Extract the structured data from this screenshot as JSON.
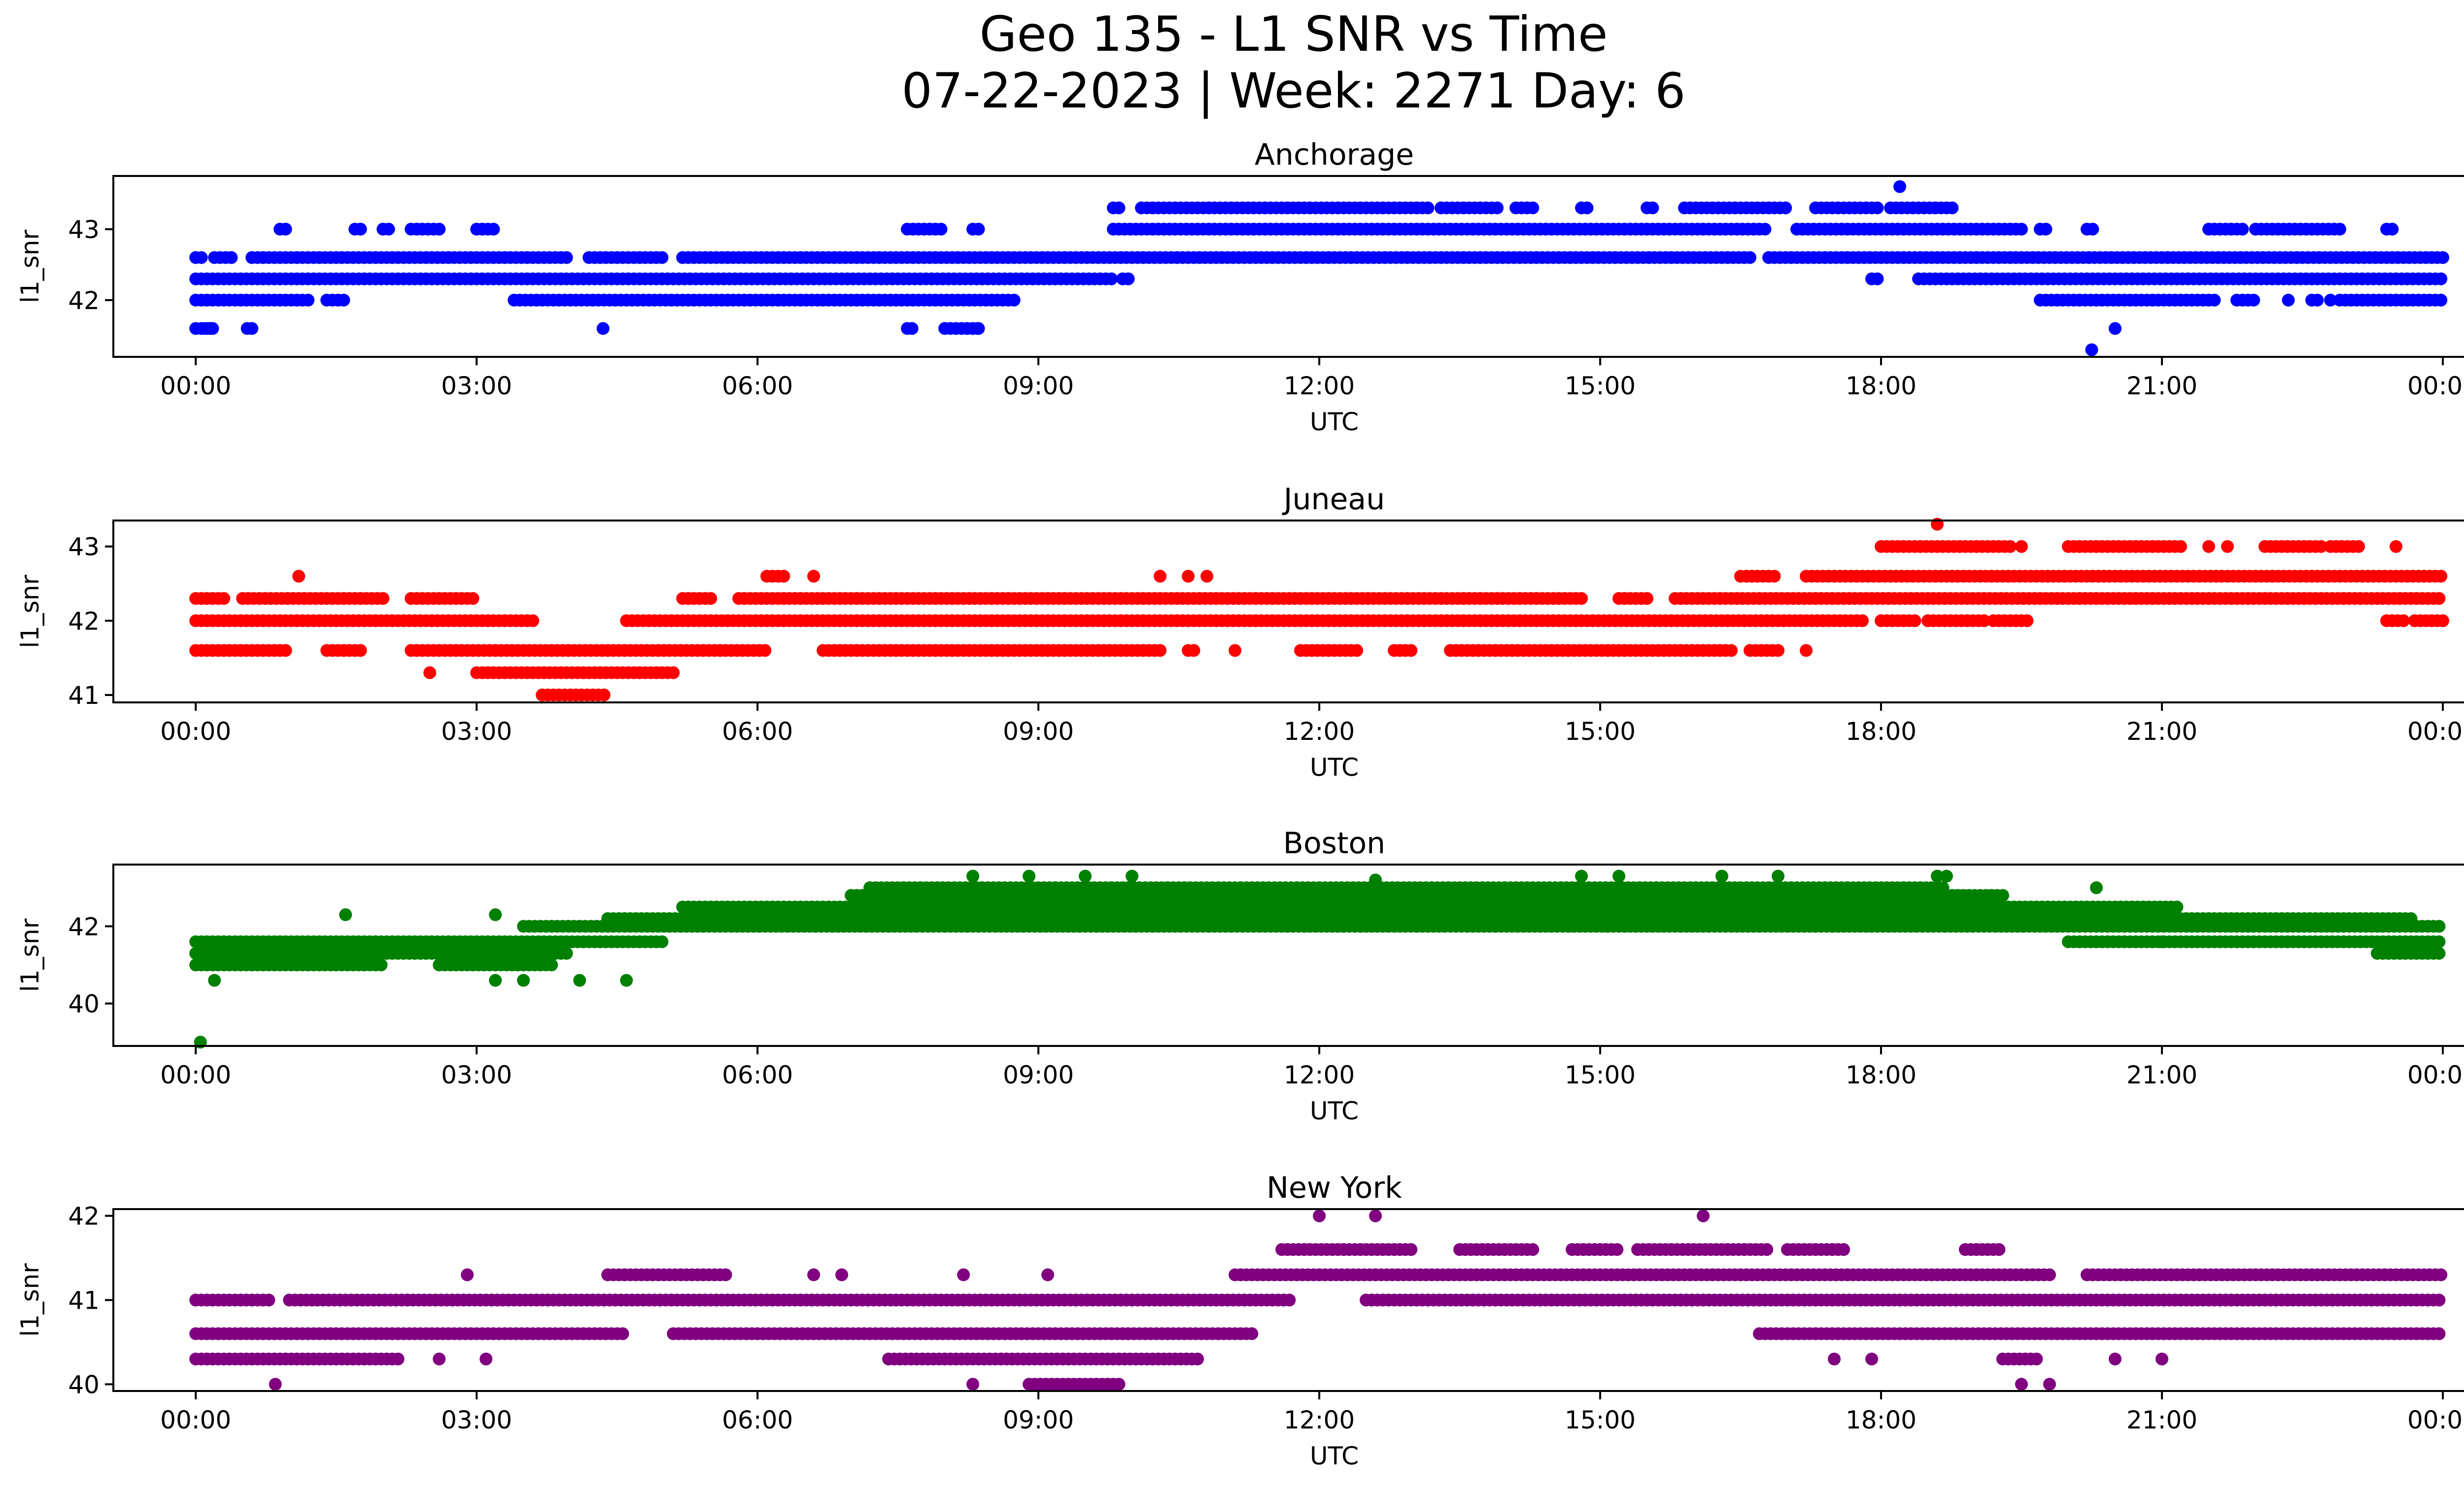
{
  "title_line1": "Geo 135 - L1 SNR vs Time",
  "title_line2": "07-22-2023 | Week: 2271 Day: 6",
  "chart_data": [
    {
      "type": "scatter",
      "title": "Anchorage",
      "xlabel": "UTC",
      "ylabel": "l1_snr",
      "color": "#0000ff",
      "xlim": [
        -0.88,
        25.2
      ],
      "ylim": [
        41.2,
        43.75
      ],
      "x_ticks": [
        "00:00",
        "03:00",
        "06:00",
        "09:00",
        "12:00",
        "15:00",
        "18:00",
        "21:00",
        "00:00"
      ],
      "y_ticks": [
        42,
        43
      ],
      "levels": [
        {
          "y": 41.6,
          "runs": [
            [
              0.0,
              0.2
            ],
            [
              0.55,
              0.6
            ],
            [
              7.6,
              7.65
            ],
            [
              8.0,
              8.4
            ]
          ]
        },
        {
          "y": 42.0,
          "runs": [
            [
              0.0,
              1.2
            ],
            [
              1.4,
              1.6
            ],
            [
              3.4,
              8.75
            ],
            [
              19.7,
              21.6
            ],
            [
              21.8,
              22.0
            ],
            [
              22.6,
              22.7
            ],
            [
              22.9,
              24.0
            ]
          ]
        },
        {
          "y": 42.3,
          "runs": [
            [
              0.0,
              9.8
            ],
            [
              9.9,
              10.0
            ],
            [
              17.9,
              18.0
            ],
            [
              18.4,
              24.0
            ]
          ]
        },
        {
          "y": 42.6,
          "runs": [
            [
              0.0,
              0.1
            ],
            [
              0.2,
              0.4
            ],
            [
              0.6,
              4.0
            ],
            [
              4.2,
              5.0
            ],
            [
              5.2,
              16.6
            ],
            [
              16.8,
              24.0
            ]
          ]
        },
        {
          "y": 43.0,
          "runs": [
            [
              0.9,
              1.0
            ],
            [
              1.7,
              1.8
            ],
            [
              2.0,
              2.1
            ],
            [
              2.3,
              2.6
            ],
            [
              3.0,
              3.2
            ],
            [
              7.6,
              8.0
            ],
            [
              8.3,
              8.4
            ],
            [
              9.8,
              16.8
            ],
            [
              17.1,
              19.5
            ],
            [
              19.7,
              19.8
            ],
            [
              20.2,
              20.3
            ],
            [
              21.5,
              21.9
            ],
            [
              22.0,
              22.9
            ],
            [
              23.4,
              23.5
            ]
          ]
        },
        {
          "y": 43.3,
          "runs": [
            [
              9.8,
              9.9
            ],
            [
              10.1,
              13.2
            ],
            [
              13.3,
              13.9
            ],
            [
              14.1,
              14.3
            ],
            [
              14.8,
              14.9
            ],
            [
              15.5,
              15.6
            ],
            [
              15.9,
              17.0
            ],
            [
              17.3,
              18.0
            ],
            [
              18.1,
              18.8
            ]
          ]
        }
      ],
      "points": [
        [
          0.1,
          41.6
        ],
        [
          0.15,
          41.6
        ],
        [
          0.6,
          41.6
        ],
        [
          4.35,
          41.6
        ],
        [
          7.65,
          41.6
        ],
        [
          8.3,
          41.6
        ],
        [
          8.35,
          41.6
        ],
        [
          18.2,
          43.6
        ],
        [
          20.25,
          41.3
        ],
        [
          20.5,
          41.6
        ],
        [
          22.35,
          42.0
        ],
        [
          22.8,
          42.0
        ]
      ]
    },
    {
      "type": "scatter",
      "title": "Juneau",
      "xlabel": "UTC",
      "ylabel": "l1_snr",
      "color": "#ff0000",
      "xlim": [
        -0.88,
        25.2
      ],
      "ylim": [
        40.9,
        43.35
      ],
      "x_ticks": [
        "00:00",
        "03:00",
        "06:00",
        "09:00",
        "12:00",
        "15:00",
        "18:00",
        "21:00",
        "00:00"
      ],
      "y_ticks": [
        41,
        42,
        43
      ],
      "levels": [
        {
          "y": 41.0,
          "runs": [
            [
              3.7,
              4.4
            ]
          ]
        },
        {
          "y": 41.3,
          "runs": [
            [
              3.0,
              5.1
            ]
          ]
        },
        {
          "y": 41.6,
          "runs": [
            [
              0.0,
              1.0
            ],
            [
              1.4,
              1.8
            ],
            [
              2.3,
              6.1
            ],
            [
              6.7,
              10.3
            ],
            [
              10.6,
              10.7
            ],
            [
              11.8,
              12.4
            ],
            [
              12.8,
              13.0
            ],
            [
              13.4,
              16.4
            ],
            [
              16.6,
              16.9
            ]
          ]
        },
        {
          "y": 42.0,
          "runs": [
            [
              0.0,
              3.6
            ],
            [
              4.6,
              17.8
            ],
            [
              18.0,
              18.4
            ],
            [
              18.5,
              19.1
            ],
            [
              19.2,
              19.6
            ],
            [
              23.4,
              23.6
            ],
            [
              23.7,
              24.0
            ]
          ]
        },
        {
          "y": 42.3,
          "runs": [
            [
              0.0,
              0.3
            ],
            [
              0.5,
              2.0
            ],
            [
              2.3,
              3.0
            ],
            [
              5.2,
              5.5
            ],
            [
              5.8,
              14.8
            ],
            [
              15.2,
              15.5
            ],
            [
              15.8,
              24.0
            ]
          ]
        },
        {
          "y": 42.6,
          "runs": [
            [
              6.1,
              6.3
            ],
            [
              16.5,
              16.9
            ],
            [
              17.2,
              24.0
            ]
          ]
        },
        {
          "y": 43.0,
          "runs": [
            [
              18.0,
              19.4
            ],
            [
              20.0,
              21.2
            ],
            [
              22.1,
              22.7
            ],
            [
              22.8,
              23.1
            ]
          ]
        }
      ],
      "points": [
        [
          1.1,
          42.6
        ],
        [
          2.5,
          41.3
        ],
        [
          3.2,
          41.6
        ],
        [
          6.6,
          42.6
        ],
        [
          10.3,
          42.6
        ],
        [
          10.6,
          42.6
        ],
        [
          10.8,
          42.6
        ],
        [
          11.1,
          41.6
        ],
        [
          13.7,
          41.6
        ],
        [
          17.2,
          41.6
        ],
        [
          18.6,
          43.3
        ],
        [
          19.5,
          43.0
        ],
        [
          21.5,
          43.0
        ],
        [
          21.7,
          43.0
        ],
        [
          23.5,
          43.0
        ]
      ]
    },
    {
      "type": "scatter",
      "title": "Boston",
      "xlabel": "UTC",
      "ylabel": "l1_snr",
      "color": "#008000",
      "xlim": [
        -0.88,
        25.2
      ],
      "ylim": [
        38.9,
        43.6
      ],
      "x_ticks": [
        "00:00",
        "03:00",
        "06:00",
        "09:00",
        "12:00",
        "15:00",
        "18:00",
        "21:00",
        "00:00"
      ],
      "y_ticks": [
        40,
        42
      ],
      "levels": [
        {
          "y": 41.0,
          "runs": [
            [
              0.0,
              2.0
            ],
            [
              2.6,
              3.8
            ]
          ]
        },
        {
          "y": 41.3,
          "runs": [
            [
              0.0,
              4.0
            ],
            [
              23.3,
              24.0
            ]
          ]
        },
        {
          "y": 41.6,
          "runs": [
            [
              0.0,
              5.0
            ],
            [
              20.0,
              24.0
            ]
          ]
        },
        {
          "y": 42.0,
          "runs": [
            [
              3.5,
              24.0
            ]
          ]
        },
        {
          "y": 42.2,
          "runs": [
            [
              4.4,
              23.7
            ]
          ]
        },
        {
          "y": 42.5,
          "runs": [
            [
              5.2,
              21.2
            ]
          ]
        },
        {
          "y": 42.8,
          "runs": [
            [
              7.0,
              19.3
            ]
          ]
        },
        {
          "y": 43.0,
          "runs": [
            [
              7.2,
              18.7
            ]
          ]
        }
      ],
      "points": [
        [
          0.05,
          39.0
        ],
        [
          0.2,
          40.6
        ],
        [
          1.6,
          42.3
        ],
        [
          3.2,
          42.3
        ],
        [
          3.2,
          40.6
        ],
        [
          3.5,
          40.6
        ],
        [
          4.1,
          40.6
        ],
        [
          4.6,
          40.6
        ],
        [
          8.3,
          43.3
        ],
        [
          8.9,
          43.3
        ],
        [
          9.5,
          43.3
        ],
        [
          10.0,
          43.3
        ],
        [
          12.6,
          43.2
        ],
        [
          14.8,
          43.3
        ],
        [
          15.2,
          43.3
        ],
        [
          16.3,
          43.3
        ],
        [
          16.9,
          43.3
        ],
        [
          18.7,
          43.3
        ],
        [
          18.6,
          43.3
        ],
        [
          20.3,
          43.0
        ],
        [
          21.0,
          41.6
        ],
        [
          23.6,
          41.6
        ]
      ]
    },
    {
      "type": "scatter",
      "title": "New York",
      "xlabel": "UTC",
      "ylabel": "l1_snr",
      "color": "#800080",
      "xlim": [
        -0.88,
        25.2
      ],
      "ylim": [
        39.92,
        42.08
      ],
      "x_ticks": [
        "00:00",
        "03:00",
        "06:00",
        "09:00",
        "12:00",
        "15:00",
        "18:00",
        "21:00",
        "00:00"
      ],
      "y_ticks": [
        40,
        41,
        42
      ],
      "levels": [
        {
          "y": 40.0,
          "runs": [
            [
              8.9,
              9.9
            ]
          ]
        },
        {
          "y": 40.3,
          "runs": [
            [
              0.0,
              2.2
            ],
            [
              7.4,
              10.7
            ],
            [
              19.3,
              19.7
            ]
          ]
        },
        {
          "y": 40.6,
          "runs": [
            [
              0.0,
              4.6
            ],
            [
              5.1,
              11.3
            ],
            [
              16.7,
              24.0
            ]
          ]
        },
        {
          "y": 41.0,
          "runs": [
            [
              0.0,
              0.8
            ],
            [
              1.0,
              11.7
            ],
            [
              12.5,
              24.0
            ]
          ]
        },
        {
          "y": 41.3,
          "runs": [
            [
              4.4,
              5.7
            ],
            [
              11.1,
              19.8
            ],
            [
              20.2,
              24.0
            ]
          ]
        },
        {
          "y": 41.6,
          "runs": [
            [
              11.6,
              13.0
            ],
            [
              13.5,
              14.3
            ],
            [
              14.7,
              15.2
            ],
            [
              15.4,
              16.8
            ],
            [
              17.0,
              17.6
            ],
            [
              18.9,
              19.3
            ]
          ]
        }
      ],
      "points": [
        [
          0.85,
          40.0
        ],
        [
          2.9,
          41.3
        ],
        [
          6.6,
          41.3
        ],
        [
          6.9,
          41.3
        ],
        [
          8.2,
          41.3
        ],
        [
          9.1,
          41.3
        ],
        [
          8.3,
          40.0
        ],
        [
          12.0,
          42.0
        ],
        [
          12.6,
          42.0
        ],
        [
          16.1,
          42.0
        ],
        [
          19.5,
          40.0
        ],
        [
          19.8,
          40.0
        ],
        [
          17.5,
          40.3
        ],
        [
          17.9,
          40.3
        ],
        [
          20.5,
          40.3
        ],
        [
          21.0,
          40.3
        ],
        [
          2.6,
          40.3
        ],
        [
          3.1,
          40.3
        ]
      ]
    }
  ]
}
